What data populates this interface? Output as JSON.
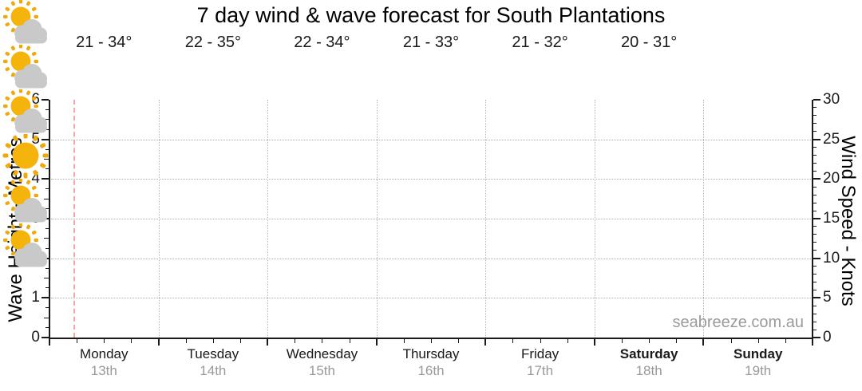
{
  "title": "7 day wind & wave forecast for South Plantations",
  "watermark": "seabreeze.com.au",
  "chart_data": {
    "type": "line",
    "title": "7 day wind & wave forecast for South Plantations",
    "subtitle": "",
    "series": [],
    "note": "plot area is empty - no wave or wind curves are drawn yet",
    "grid": "dotted",
    "legend": "none",
    "y_left": {
      "label": "Wave Height - Metres",
      "min": 0,
      "max": 6,
      "major_step": 1,
      "minor_step": 0.25,
      "ticks": [
        0,
        1,
        2,
        3,
        4,
        5,
        6
      ]
    },
    "y_right": {
      "label": "Wind Speed - Knots",
      "min": 0,
      "max": 30,
      "major_step": 5,
      "minor_step": 1,
      "ticks": [
        0,
        5,
        10,
        15,
        20,
        25,
        30
      ]
    },
    "x": {
      "unit": "days",
      "count": 7,
      "minor_ticks_per_day": 4
    },
    "now_line": {
      "day_fraction": 0.22,
      "style": "dashed"
    },
    "days": [
      {
        "name": "Monday",
        "date": "13th",
        "temp": "21 - 34°",
        "icon": "partly-cloudy",
        "bold": false
      },
      {
        "name": "Tuesday",
        "date": "14th",
        "temp": "22 - 35°",
        "icon": "partly-cloudy",
        "bold": false
      },
      {
        "name": "Wednesday",
        "date": "15th",
        "temp": "22 - 34°",
        "icon": "partly-cloudy",
        "bold": false
      },
      {
        "name": "Thursday",
        "date": "16th",
        "temp": "21 - 33°",
        "icon": "sunny",
        "bold": false
      },
      {
        "name": "Friday",
        "date": "17th",
        "temp": "21 - 32°",
        "icon": "partly-cloudy",
        "bold": false
      },
      {
        "name": "Saturday",
        "date": "18th",
        "temp": "20 - 31°",
        "icon": "partly-cloudy",
        "bold": true
      },
      {
        "name": "Sunday",
        "date": "19th",
        "temp": "",
        "icon": "none",
        "bold": true
      }
    ],
    "colors": {
      "sun": "#F5B40B",
      "sun_rays": "#EFA90A",
      "cloud": "#C9C9C9",
      "grid": "#ACACAC",
      "axis": "#1A1A1A",
      "now_line": "#F4A7A7",
      "date_text": "#999999",
      "watermark_text": "#9A9A9A"
    }
  }
}
